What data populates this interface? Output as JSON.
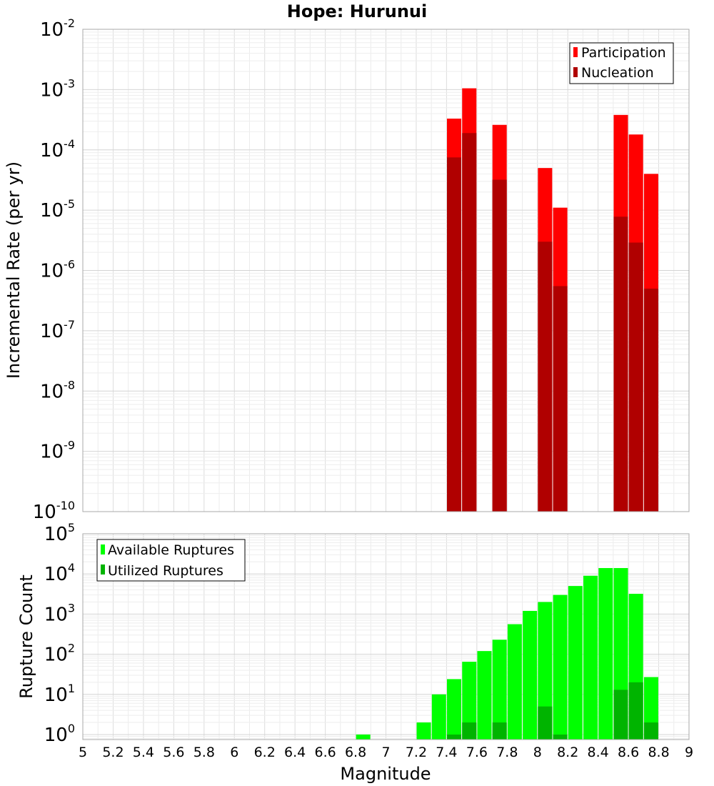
{
  "chart_data": [
    {
      "type": "bar",
      "title": "Hope: Hurunui",
      "xlabel": "",
      "ylabel": "Incremental Rate (per yr)",
      "yscale": "log",
      "ylim": [
        1e-10,
        0.01
      ],
      "xlim": [
        5,
        9
      ],
      "grid": true,
      "legend_position": "top-right",
      "y_tick_exponents": [
        "-10",
        "-9",
        "-8",
        "-7",
        "-6",
        "-5",
        "-4",
        "-3",
        "-2"
      ],
      "series": [
        {
          "name": "Participation",
          "color": "#ff0000",
          "x": [
            7.45,
            7.55,
            7.75,
            8.05,
            8.15,
            8.55,
            8.65,
            8.75
          ],
          "values": [
            0.00033,
            0.00105,
            0.00026,
            5e-05,
            1.1e-05,
            0.00038,
            0.00018,
            4e-05
          ]
        },
        {
          "name": "Nucleation",
          "color": "#b00000",
          "x": [
            7.45,
            7.55,
            7.75,
            8.05,
            8.15,
            8.55,
            8.65,
            8.75
          ],
          "values": [
            7.5e-05,
            0.00019,
            3.2e-05,
            3e-06,
            5.5e-07,
            7.8e-06,
            2.9e-06,
            5e-07
          ]
        }
      ]
    },
    {
      "type": "bar",
      "title": "",
      "xlabel": "Magnitude",
      "ylabel": "Rupture Count",
      "yscale": "log",
      "ylim": [
        0.75,
        100000
      ],
      "xlim": [
        5,
        9
      ],
      "grid": true,
      "legend_position": "top-left",
      "x_ticks": [
        "5",
        "5.2",
        "5.4",
        "5.6",
        "5.8",
        "6",
        "6.2",
        "6.4",
        "6.6",
        "6.8",
        "7",
        "7.2",
        "7.4",
        "7.6",
        "7.8",
        "8",
        "8.2",
        "8.4",
        "8.6",
        "8.8",
        "9"
      ],
      "y_tick_exponents": [
        "0",
        "1",
        "2",
        "3",
        "4",
        "5"
      ],
      "series": [
        {
          "name": "Available Ruptures",
          "color": "#00ff00",
          "x": [
            6.85,
            7.25,
            7.35,
            7.45,
            7.55,
            7.65,
            7.75,
            7.85,
            7.95,
            8.05,
            8.15,
            8.25,
            8.35,
            8.45,
            8.55,
            8.65,
            8.75
          ],
          "values": [
            1,
            2,
            10,
            24,
            65,
            120,
            230,
            560,
            1200,
            2000,
            3000,
            5000,
            9000,
            14000,
            14000,
            3200,
            27
          ]
        },
        {
          "name": "Utilized Ruptures",
          "color": "#00b400",
          "x": [
            7.45,
            7.55,
            7.75,
            8.05,
            8.15,
            8.55,
            8.65,
            8.75
          ],
          "values": [
            1,
            2,
            2,
            5,
            1,
            13,
            20,
            2
          ]
        }
      ]
    }
  ]
}
